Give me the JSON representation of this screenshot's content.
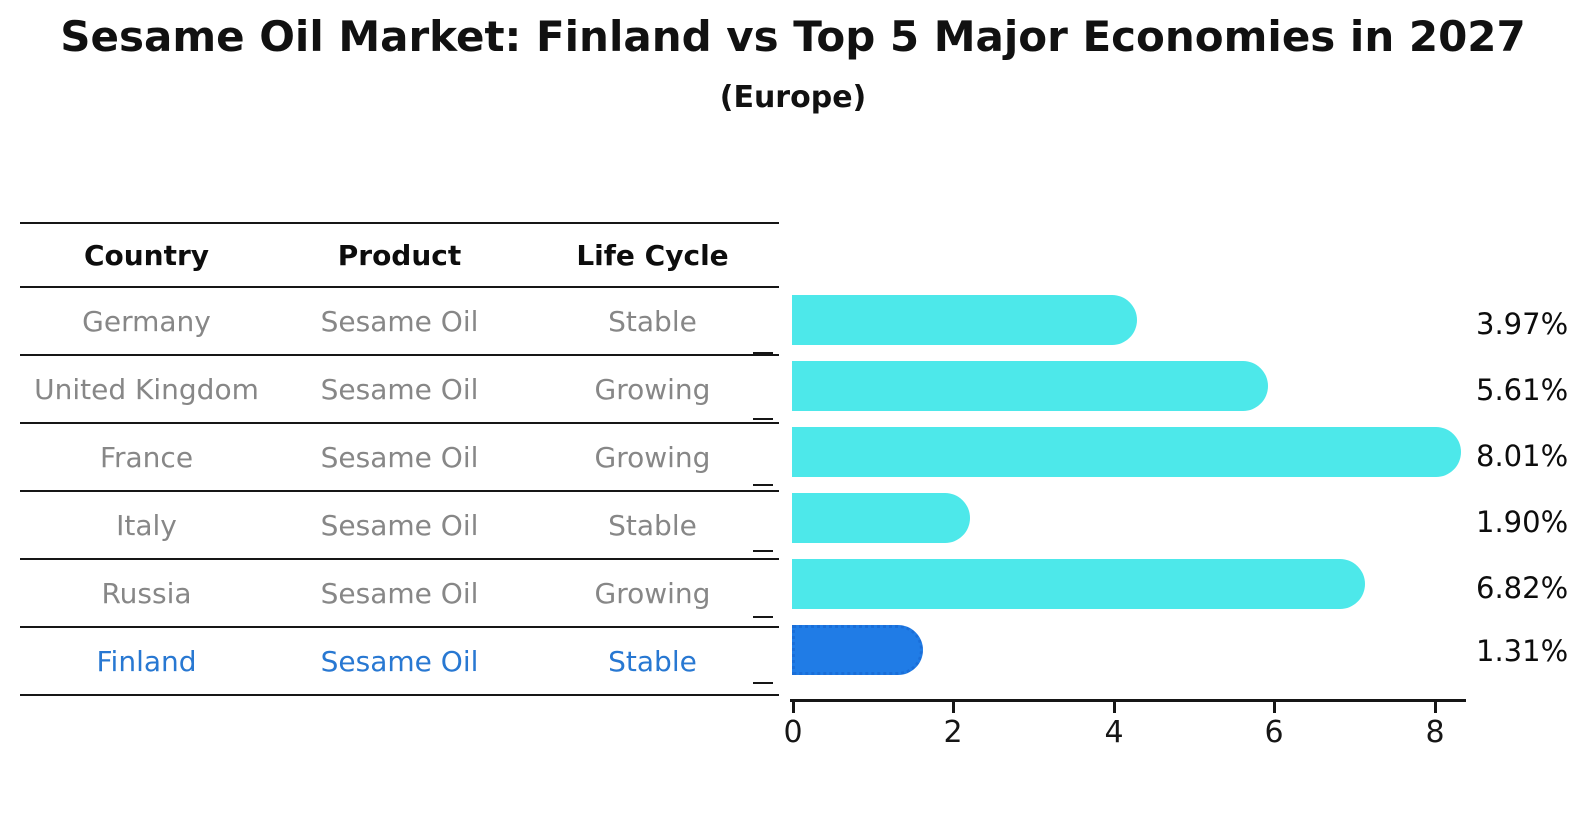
{
  "title": "Sesame Oil Market: Finland vs Top 5 Major Economies in 2027",
  "subtitle": "(Europe)",
  "table": {
    "headers": [
      "Country",
      "Product",
      "Life Cycle"
    ],
    "rows": [
      {
        "country": "Germany",
        "product": "Sesame Oil",
        "life_cycle": "Stable",
        "highlighted": false
      },
      {
        "country": "United Kingdom",
        "product": "Sesame Oil",
        "life_cycle": "Growing",
        "highlighted": false
      },
      {
        "country": "France",
        "product": "Sesame Oil",
        "life_cycle": "Growing",
        "highlighted": false
      },
      {
        "country": "Italy",
        "product": "Sesame Oil",
        "life_cycle": "Stable",
        "highlighted": false
      },
      {
        "country": "Russia",
        "product": "Sesame Oil",
        "life_cycle": "Growing",
        "highlighted": false
      },
      {
        "country": "Finland",
        "product": "Sesame Oil",
        "life_cycle": "Stable",
        "highlighted": true
      }
    ]
  },
  "chart_data": {
    "type": "bar",
    "orientation": "horizontal",
    "categories": [
      "Germany",
      "United Kingdom",
      "France",
      "Italy",
      "Russia",
      "Finland"
    ],
    "values": [
      3.97,
      5.61,
      8.01,
      1.9,
      6.82,
      1.31
    ],
    "value_labels": [
      "3.97%",
      "5.61%",
      "8.01%",
      "1.90%",
      "6.82%",
      "1.31%"
    ],
    "unit": "percent",
    "xlabel": "",
    "ylabel": "",
    "xlim": [
      0,
      8.4
    ],
    "xticks": [
      "0",
      "2",
      "4",
      "6",
      "8"
    ],
    "grid": false,
    "legend": "none",
    "bar_color": "#4de8ea",
    "highlight_index": 5,
    "highlight_color": "#207ce6",
    "highlight_border_color": "#1a6ed8",
    "highlight_border_style": "dotted"
  },
  "colors": {
    "text_primary": "#111111",
    "table_text_muted": "#878787",
    "highlight_text": "#2878d2",
    "axis": "#161616",
    "background": "#ffffff"
  }
}
